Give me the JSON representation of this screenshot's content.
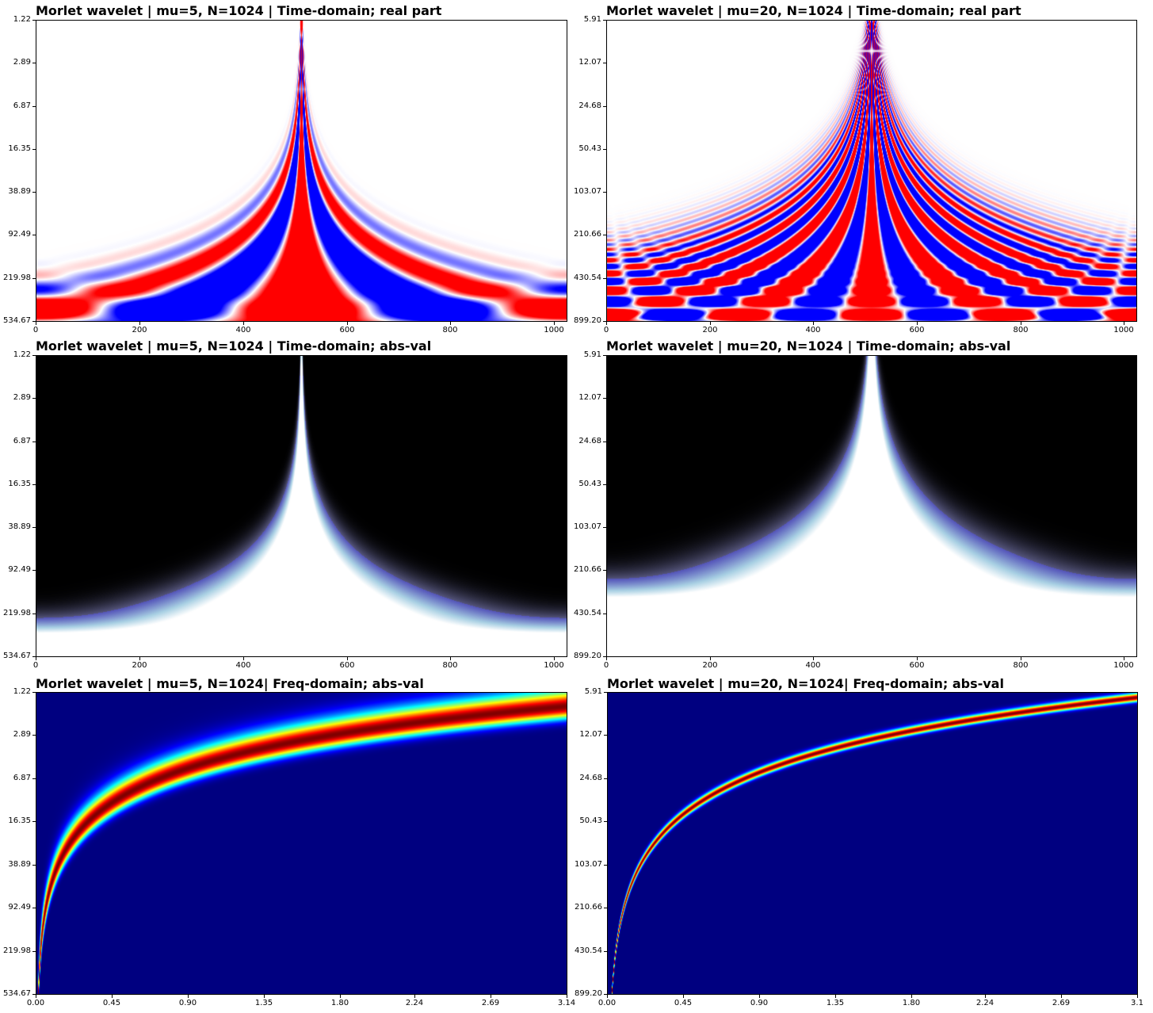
{
  "chart_data": [
    {
      "type": "heatmap",
      "id": "p1",
      "title": "Morlet wavelet | mu=5, N=1024 | Time-domain; real part",
      "mu": 5,
      "N": 1024,
      "domain": "time",
      "component": "real",
      "colormap": "bwr",
      "xlim": [
        0,
        1024
      ],
      "xticks": [
        "0",
        "200",
        "400",
        "600",
        "800",
        "1000"
      ],
      "xtick_values": [
        0,
        200,
        400,
        600,
        800,
        1000
      ],
      "yticks": [
        "1.22",
        "2.89",
        "6.87",
        "16.35",
        "38.89",
        "92.49",
        "219.98",
        "534.67"
      ],
      "ylim": [
        1.22,
        534.67
      ],
      "yscale": "log",
      "yaxis_inverted": true
    },
    {
      "type": "heatmap",
      "id": "p2",
      "title": "Morlet wavelet | mu=20, N=1024 | Time-domain; real part",
      "mu": 20,
      "N": 1024,
      "domain": "time",
      "component": "real",
      "colormap": "bwr",
      "xlim": [
        0,
        1024
      ],
      "xticks": [
        "0",
        "200",
        "400",
        "600",
        "800",
        "1000"
      ],
      "xtick_values": [
        0,
        200,
        400,
        600,
        800,
        1000
      ],
      "yticks": [
        "5.91",
        "12.07",
        "24.68",
        "50.43",
        "103.07",
        "210.66",
        "430.54",
        "899.20"
      ],
      "ylim": [
        5.91,
        899.2
      ],
      "yscale": "log",
      "yaxis_inverted": true
    },
    {
      "type": "heatmap",
      "id": "p3",
      "title": "Morlet wavelet | mu=5, N=1024 | Time-domain; abs-val",
      "mu": 5,
      "N": 1024,
      "domain": "time",
      "component": "abs",
      "colormap": "bone",
      "xlim": [
        0,
        1024
      ],
      "xticks": [
        "0",
        "200",
        "400",
        "600",
        "800",
        "1000"
      ],
      "xtick_values": [
        0,
        200,
        400,
        600,
        800,
        1000
      ],
      "yticks": [
        "1.22",
        "2.89",
        "6.87",
        "16.35",
        "38.89",
        "92.49",
        "219.98",
        "534.67"
      ],
      "ylim": [
        1.22,
        534.67
      ],
      "yscale": "log",
      "yaxis_inverted": true
    },
    {
      "type": "heatmap",
      "id": "p4",
      "title": "Morlet wavelet | mu=20, N=1024 | Time-domain; abs-val",
      "mu": 20,
      "N": 1024,
      "domain": "time",
      "component": "abs",
      "colormap": "bone",
      "xlim": [
        0,
        1024
      ],
      "xticks": [
        "0",
        "200",
        "400",
        "600",
        "800",
        "1000"
      ],
      "xtick_values": [
        0,
        200,
        400,
        600,
        800,
        1000
      ],
      "yticks": [
        "5.91",
        "12.07",
        "24.68",
        "50.43",
        "103.07",
        "210.66",
        "430.54",
        "899.20"
      ],
      "ylim": [
        5.91,
        899.2
      ],
      "yscale": "log",
      "yaxis_inverted": true
    },
    {
      "type": "heatmap",
      "id": "p5",
      "title": "Morlet wavelet | mu=5, N=1024| Freq-domain; abs-val",
      "mu": 5,
      "N": 1024,
      "domain": "frequency",
      "component": "abs",
      "colormap": "jet",
      "xlim": [
        0,
        3.14
      ],
      "xticks": [
        "0.00",
        "0.45",
        "0.90",
        "1.35",
        "1.80",
        "2.24",
        "2.69",
        "3.14"
      ],
      "xtick_values": [
        0,
        0.45,
        0.9,
        1.35,
        1.8,
        2.24,
        2.69,
        3.14
      ],
      "yticks": [
        "1.22",
        "2.89",
        "6.87",
        "16.35",
        "38.89",
        "92.49",
        "219.98",
        "534.67"
      ],
      "ylim": [
        1.22,
        534.67
      ],
      "yscale": "log",
      "yaxis_inverted": true
    },
    {
      "type": "heatmap",
      "id": "p6",
      "title": "Morlet wavelet | mu=20, N=1024| Freq-domain; abs-val",
      "mu": 20,
      "N": 1024,
      "domain": "frequency",
      "component": "abs",
      "colormap": "jet",
      "xlim": [
        0,
        3.14
      ],
      "xticks": [
        "0.00",
        "0.45",
        "0.90",
        "1.35",
        "1.80",
        "2.24",
        "2.69",
        "3.1"
      ],
      "xtick_values": [
        0,
        0.45,
        0.9,
        1.35,
        1.8,
        2.24,
        2.69,
        3.14
      ],
      "yticks": [
        "5.91",
        "12.07",
        "24.68",
        "50.43",
        "103.07",
        "210.66",
        "430.54",
        "899.20"
      ],
      "ylim": [
        5.91,
        899.2
      ],
      "yscale": "log",
      "yaxis_inverted": true
    }
  ]
}
